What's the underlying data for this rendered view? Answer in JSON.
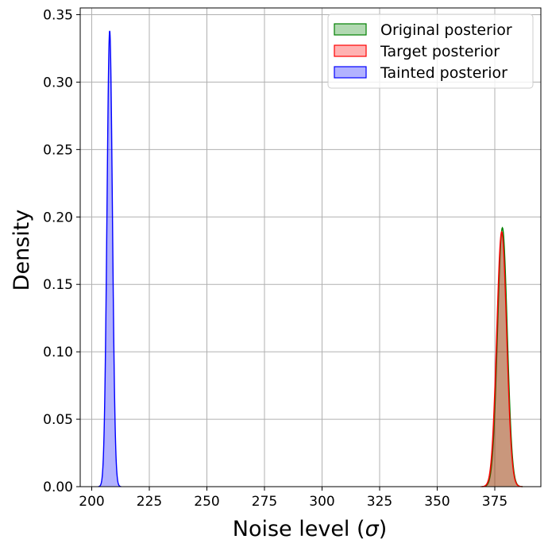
{
  "chart_data": {
    "type": "area",
    "xlabel_prefix": "Noise level (",
    "xlabel_symbol": "σ",
    "xlabel_suffix": ")",
    "ylabel": "Density",
    "xlim": [
      195,
      395
    ],
    "ylim": [
      0,
      0.355
    ],
    "grid": true,
    "legend_position": "top-right",
    "x_ticks": [
      200,
      225,
      250,
      275,
      300,
      325,
      350,
      375
    ],
    "x_tick_labels": [
      "200",
      "225",
      "250",
      "275",
      "300",
      "325",
      "350",
      "375"
    ],
    "y_ticks": [
      0,
      0.05,
      0.1,
      0.15,
      0.2,
      0.25,
      0.3,
      0.35
    ],
    "y_tick_labels": [
      "0.00",
      "0.05",
      "0.10",
      "0.15",
      "0.20",
      "0.25",
      "0.30",
      "0.35"
    ],
    "series": [
      {
        "name": "Original posterior",
        "color": "#008000",
        "peak_x": 378.3,
        "peak_y": 0.192,
        "sigma": 2.1
      },
      {
        "name": "Target posterior",
        "color": "#ff0000",
        "peak_x": 378.0,
        "peak_y": 0.189,
        "sigma": 2.15
      },
      {
        "name": "Tainted posterior",
        "color": "#0000ff",
        "peak_x": 207.8,
        "peak_y": 0.338,
        "sigma": 1.18
      }
    ]
  }
}
